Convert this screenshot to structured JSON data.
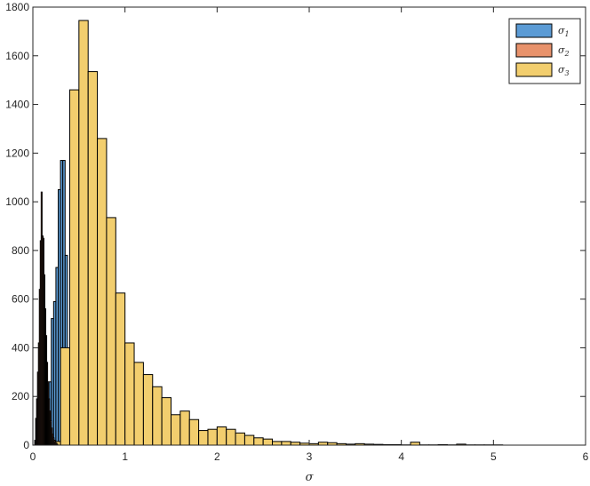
{
  "chart_data": {
    "type": "bar",
    "title": "",
    "xlabel": "σ",
    "ylabel": "",
    "xlim": [
      0,
      6
    ],
    "ylim": [
      0,
      1800
    ],
    "xticks": [
      0,
      1,
      2,
      3,
      4,
      5,
      6
    ],
    "yticks": [
      0,
      200,
      400,
      600,
      800,
      1000,
      1200,
      1400,
      1600,
      1800
    ],
    "grid": false,
    "legend_position": "top-right",
    "series": [
      {
        "name": "σ1",
        "label_base": "σ",
        "label_sub": "1",
        "color": "#5B9BD5",
        "bin_width": 0.025,
        "bin_starts": [
          0.15,
          0.175,
          0.2,
          0.225,
          0.25,
          0.275,
          0.3,
          0.325,
          0.35,
          0.375,
          0.4
        ],
        "values": [
          40,
          260,
          520,
          590,
          730,
          1050,
          1170,
          1170,
          780,
          330,
          40
        ]
      },
      {
        "name": "σ2",
        "label_base": "σ",
        "label_sub": "2",
        "color": "#E8926B",
        "bin_width": 0.01,
        "bin_starts": [
          0.02,
          0.03,
          0.04,
          0.05,
          0.06,
          0.07,
          0.08,
          0.09,
          0.1,
          0.11,
          0.12,
          0.13,
          0.14,
          0.15,
          0.16,
          0.17,
          0.18,
          0.19,
          0.2,
          0.21,
          0.22,
          0.23,
          0.24,
          0.25,
          0.26
        ],
        "values": [
          20,
          110,
          190,
          300,
          420,
          640,
          840,
          1040,
          860,
          850,
          700,
          560,
          450,
          340,
          260,
          190,
          140,
          100,
          70,
          45,
          30,
          20,
          12,
          8,
          4
        ]
      },
      {
        "name": "σ3",
        "label_base": "σ",
        "label_sub": "3",
        "color": "#F2CE6E",
        "bin_width": 0.1,
        "bin_starts": [
          0.2,
          0.3,
          0.4,
          0.5,
          0.6,
          0.7,
          0.8,
          0.9,
          1.0,
          1.1,
          1.2,
          1.3,
          1.4,
          1.5,
          1.6,
          1.7,
          1.8,
          1.9,
          2.0,
          2.1,
          2.2,
          2.3,
          2.4,
          2.5,
          2.6,
          2.7,
          2.8,
          2.9,
          3.0,
          3.1,
          3.2,
          3.3,
          3.4,
          3.5,
          3.6,
          3.7,
          3.8,
          3.9,
          4.0,
          4.1,
          4.2,
          4.3,
          4.4,
          4.5,
          4.6,
          4.7,
          4.8,
          4.9,
          5.0
        ],
        "values": [
          15,
          400,
          1460,
          1745,
          1535,
          1260,
          935,
          625,
          420,
          340,
          290,
          240,
          195,
          125,
          140,
          105,
          60,
          65,
          75,
          65,
          50,
          40,
          30,
          25,
          15,
          15,
          12,
          8,
          6,
          12,
          10,
          6,
          4,
          6,
          4,
          3,
          2,
          2,
          1,
          12,
          1,
          1,
          2,
          1,
          4,
          1,
          1,
          1,
          1
        ]
      }
    ]
  }
}
